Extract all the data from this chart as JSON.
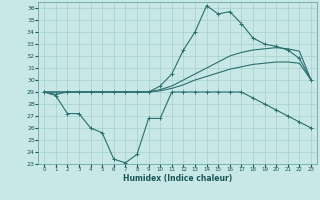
{
  "background_color": "#c8e8e8",
  "grid_color": "#a0c8c8",
  "line_color": "#2a6e6e",
  "xlabel": "Humidex (Indice chaleur)",
  "xlim": [
    -0.5,
    23.5
  ],
  "ylim": [
    23,
    36.5
  ],
  "yticks": [
    23,
    24,
    25,
    26,
    27,
    28,
    29,
    30,
    31,
    32,
    33,
    34,
    35,
    36
  ],
  "xticks": [
    0,
    1,
    2,
    3,
    4,
    5,
    6,
    7,
    8,
    9,
    10,
    11,
    12,
    13,
    14,
    15,
    16,
    17,
    18,
    19,
    20,
    21,
    22,
    23
  ],
  "line_top_x": [
    0,
    1,
    2,
    3,
    4,
    5,
    6,
    7,
    8,
    9,
    10,
    11,
    12,
    13,
    14,
    15,
    16,
    17,
    18,
    19,
    20,
    21,
    22,
    23
  ],
  "line_top_y": [
    29.0,
    28.8,
    29.0,
    29.0,
    29.0,
    29.0,
    29.0,
    29.0,
    29.0,
    29.0,
    29.5,
    30.5,
    32.5,
    34.0,
    36.2,
    35.5,
    35.7,
    34.7,
    33.5,
    33.0,
    32.8,
    32.5,
    31.8,
    30.0
  ],
  "line_smooth1_x": [
    0,
    1,
    2,
    3,
    4,
    5,
    6,
    7,
    8,
    9,
    10,
    11,
    12,
    13,
    14,
    15,
    16,
    17,
    18,
    19,
    20,
    21,
    22,
    23
  ],
  "line_smooth1_y": [
    29.0,
    29.0,
    29.0,
    29.0,
    29.0,
    29.0,
    29.0,
    29.0,
    29.0,
    29.0,
    29.1,
    29.3,
    29.6,
    30.0,
    30.3,
    30.6,
    30.9,
    31.1,
    31.3,
    31.4,
    31.5,
    31.5,
    31.4,
    30.0
  ],
  "line_smooth2_x": [
    0,
    1,
    2,
    3,
    4,
    5,
    6,
    7,
    8,
    9,
    10,
    11,
    12,
    13,
    14,
    15,
    16,
    17,
    18,
    19,
    20,
    21,
    22,
    23
  ],
  "line_smooth2_y": [
    29.0,
    29.0,
    29.0,
    29.0,
    29.0,
    29.0,
    29.0,
    29.0,
    29.0,
    29.0,
    29.2,
    29.5,
    30.0,
    30.5,
    31.0,
    31.5,
    32.0,
    32.3,
    32.5,
    32.6,
    32.7,
    32.6,
    32.4,
    30.0
  ],
  "line_bottom_x": [
    0,
    1,
    2,
    3,
    4,
    5,
    6,
    7,
    8,
    9,
    10,
    11,
    12,
    13,
    14,
    15,
    16,
    17,
    18,
    19,
    20,
    21,
    22,
    23
  ],
  "line_bottom_y": [
    29.0,
    28.7,
    27.2,
    27.2,
    26.0,
    25.6,
    23.4,
    23.1,
    23.8,
    26.8,
    26.8,
    29.0,
    29.0,
    29.0,
    29.0,
    29.0,
    29.0,
    29.0,
    28.5,
    28.0,
    27.5,
    27.0,
    26.5,
    26.0
  ]
}
